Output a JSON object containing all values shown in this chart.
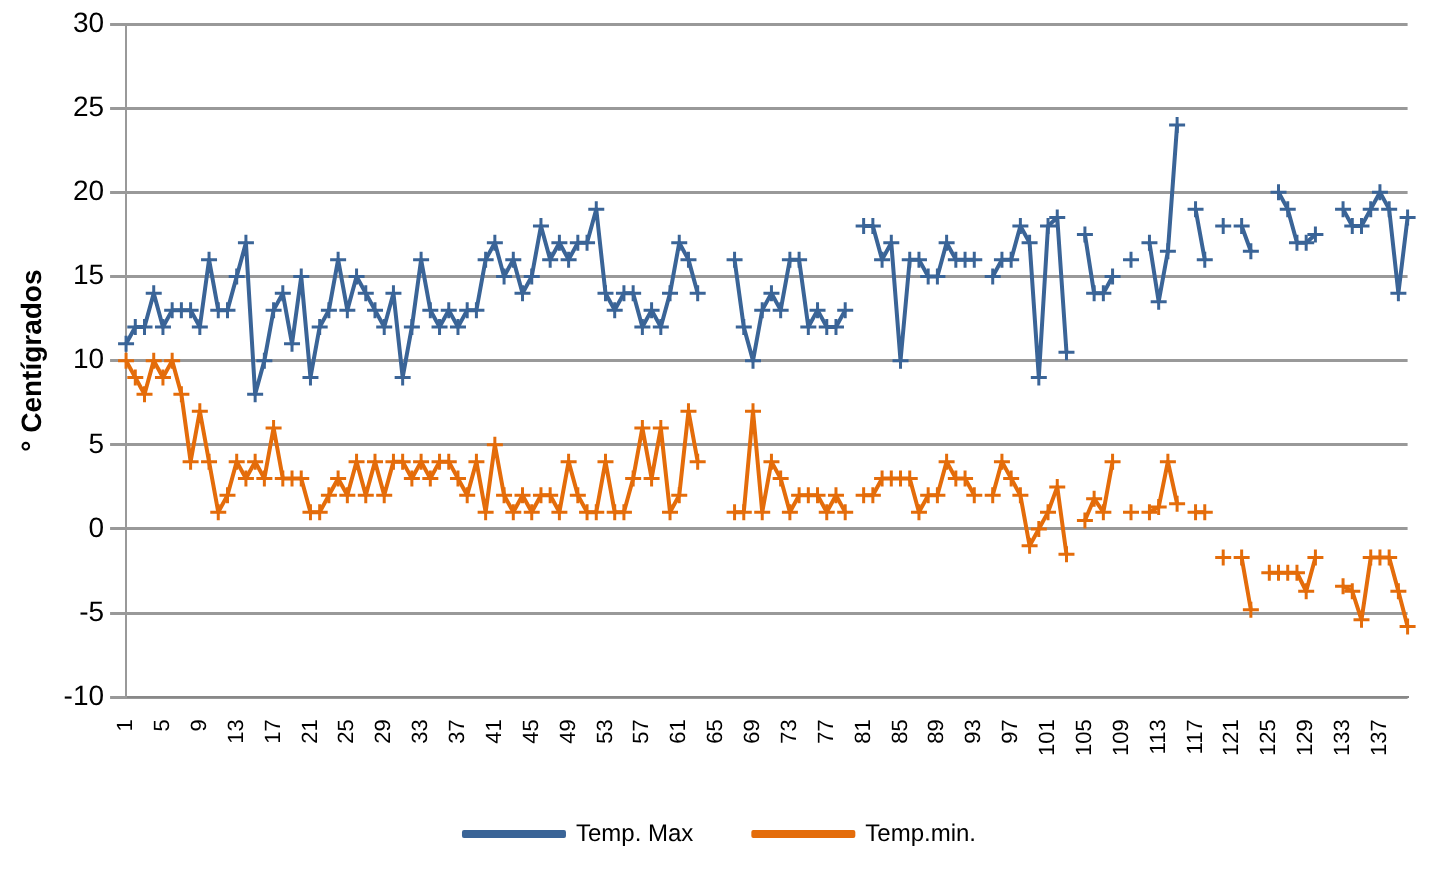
{
  "chart_data": {
    "type": "line",
    "ylabel": "° Centígrados",
    "categories": [
      "1",
      null,
      null,
      null,
      "5",
      null,
      null,
      null,
      "9",
      null,
      null,
      null,
      "13",
      null,
      null,
      null,
      "17",
      null,
      null,
      null,
      "21",
      null,
      null,
      null,
      "25",
      null,
      null,
      null,
      "29",
      null,
      null,
      null,
      "33",
      null,
      null,
      null,
      "37",
      null,
      null,
      null,
      "41",
      null,
      null,
      null,
      "45",
      null,
      null,
      null,
      "49",
      null,
      null,
      null,
      "53",
      null,
      null,
      null,
      "57",
      null,
      null,
      null,
      "61",
      null,
      null,
      null,
      "65",
      null,
      null,
      null,
      "69",
      null,
      null,
      null,
      "73",
      null,
      null,
      null,
      "77",
      null,
      null,
      null,
      "81",
      null,
      null,
      null,
      "85",
      null,
      null,
      null,
      "89",
      null,
      null,
      null,
      "93",
      null,
      null,
      null,
      "97",
      null,
      null,
      null,
      "101",
      null,
      null,
      null,
      "105",
      null,
      null,
      null,
      "109",
      null,
      null,
      null,
      "113",
      null,
      null,
      null,
      "117",
      null,
      null,
      null,
      "121",
      null,
      null,
      null,
      "125",
      null,
      null,
      null,
      "129",
      null,
      null,
      null,
      "133",
      null,
      null,
      null,
      "137",
      null,
      null,
      null
    ],
    "series": [
      {
        "name": "Temp. Max",
        "color": "#3a6497",
        "values": [
          11,
          12,
          12,
          14,
          12,
          13,
          13,
          13,
          12,
          16,
          13,
          13,
          15,
          17,
          8,
          10,
          13,
          14,
          11,
          15,
          9,
          12,
          13,
          16,
          13,
          15,
          14,
          13,
          12,
          14,
          9,
          12,
          16,
          13,
          12,
          13,
          12,
          13,
          13,
          16,
          17,
          15,
          16,
          14,
          15,
          18,
          16,
          17,
          16,
          17,
          17,
          19,
          14,
          13,
          14,
          14,
          12,
          13,
          12,
          14,
          17,
          16,
          14,
          null,
          null,
          null,
          16,
          12,
          10,
          13,
          14,
          13,
          16,
          16,
          12,
          13,
          12,
          12,
          13,
          null,
          18,
          18,
          16,
          17,
          10,
          16,
          16,
          15,
          15,
          17,
          16,
          16,
          16,
          null,
          15,
          16,
          16,
          18,
          17,
          9,
          18,
          18.5,
          10.5,
          null,
          17.5,
          14,
          14,
          15,
          null,
          16,
          null,
          17,
          13.5,
          16.5,
          24,
          null,
          19,
          16,
          null,
          18,
          null,
          18,
          16.5,
          null,
          null,
          20,
          19,
          17,
          17,
          17.5,
          null,
          null,
          19,
          18,
          18,
          19,
          20,
          19,
          14,
          18.5
        ]
      },
      {
        "name": "Temp.min.",
        "color": "#e46c0a",
        "values": [
          10,
          9,
          8,
          10,
          9,
          10,
          8,
          4,
          7,
          4,
          1,
          2,
          4,
          3,
          4,
          3,
          6,
          3,
          3,
          3,
          1,
          1,
          2,
          3,
          2,
          4,
          2,
          4,
          2,
          4,
          4,
          3,
          4,
          3,
          4,
          4,
          3,
          2,
          4,
          1,
          5,
          2,
          1,
          2,
          1,
          2,
          2,
          1,
          4,
          2,
          1,
          1,
          4,
          1,
          1,
          3,
          6,
          3,
          6,
          1,
          2,
          7,
          4,
          null,
          null,
          null,
          1,
          1,
          7,
          1,
          4,
          3,
          1,
          2,
          2,
          2,
          1,
          2,
          1,
          null,
          2,
          2,
          3,
          3,
          3,
          3,
          1,
          2,
          2,
          4,
          3,
          3,
          2,
          null,
          2,
          4,
          3,
          2,
          -1,
          0,
          1,
          2.5,
          -1.5,
          null,
          0.5,
          1.8,
          1,
          4,
          null,
          1,
          null,
          1,
          1.3,
          4,
          1.5,
          null,
          1,
          1,
          null,
          -1.7,
          null,
          -1.7,
          -4.8,
          null,
          -2.6,
          -2.6,
          -2.6,
          -2.6,
          -3.7,
          -1.7,
          null,
          null,
          -3.4,
          -3.7,
          -5.4,
          -1.7,
          -1.7,
          -1.7,
          -3.7,
          -5.8
        ]
      }
    ],
    "ylim": [
      -10,
      30
    ],
    "yticks": [
      -10,
      -5,
      0,
      5,
      10,
      15,
      20,
      25,
      30
    ],
    "grid": "y",
    "legend": "bottom",
    "marker": "cross",
    "line_style": "solid"
  }
}
